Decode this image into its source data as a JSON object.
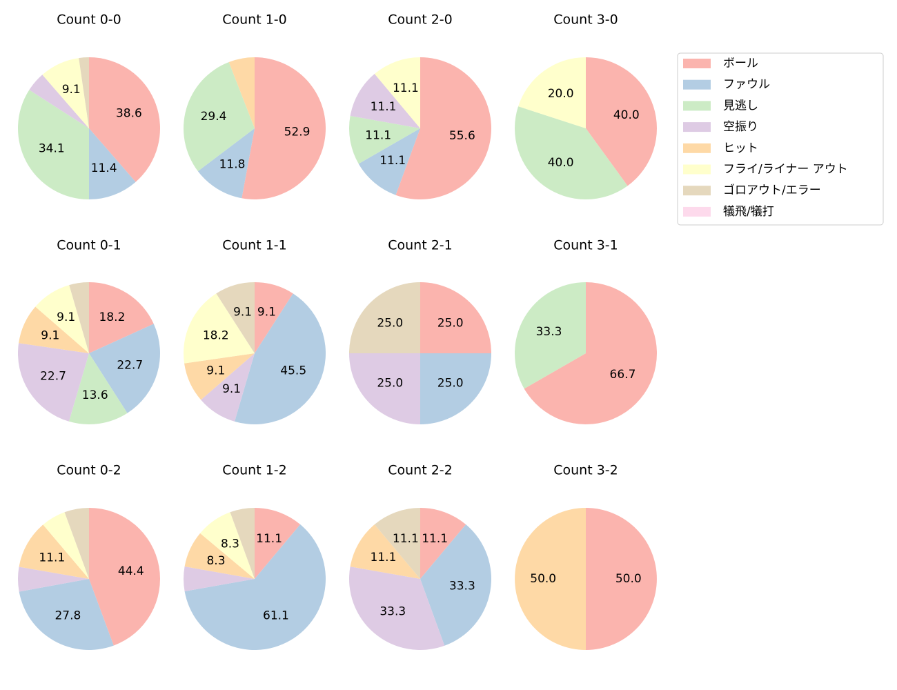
{
  "chart_data": [
    {
      "type": "pie",
      "title": "Count 0-0",
      "categories": [
        "ボール",
        "ファウル",
        "見逃し",
        "空振り",
        "フライ/ライナー アウト",
        "ゴロアウト/エラー"
      ],
      "values": [
        38.6,
        11.4,
        34.1,
        4.5,
        9.1,
        2.3
      ],
      "value_labels": [
        "38.6",
        "11.4",
        "34.1",
        null,
        "9.1",
        null
      ],
      "colors": [
        "#fbb4ae",
        "#b3cde3",
        "#ccebc5",
        "#decbe4",
        "#ffffcc",
        "#e5d8bd"
      ]
    },
    {
      "type": "pie",
      "title": "Count 1-0",
      "categories": [
        "ボール",
        "ファウル",
        "見逃し",
        "ヒット"
      ],
      "values": [
        52.9,
        11.8,
        29.4,
        5.9
      ],
      "value_labels": [
        "52.9",
        "11.8",
        "29.4",
        null
      ],
      "colors": [
        "#fbb4ae",
        "#b3cde3",
        "#ccebc5",
        "#fed9a6"
      ]
    },
    {
      "type": "pie",
      "title": "Count 2-0",
      "categories": [
        "ボール",
        "ファウル",
        "見逃し",
        "空振り",
        "フライ/ライナー アウト"
      ],
      "values": [
        55.6,
        11.1,
        11.1,
        11.1,
        11.1
      ],
      "value_labels": [
        "55.6",
        "11.1",
        "11.1",
        "11.1",
        "11.1"
      ],
      "colors": [
        "#fbb4ae",
        "#b3cde3",
        "#ccebc5",
        "#decbe4",
        "#ffffcc"
      ]
    },
    {
      "type": "pie",
      "title": "Count 3-0",
      "categories": [
        "ボール",
        "見逃し",
        "フライ/ライナー アウト"
      ],
      "values": [
        40,
        40,
        20
      ],
      "value_labels": [
        "40.0",
        "40.0",
        "20.0"
      ],
      "colors": [
        "#fbb4ae",
        "#ccebc5",
        "#ffffcc"
      ]
    },
    {
      "type": "pie",
      "title": "Count 0-1",
      "categories": [
        "ボール",
        "ファウル",
        "見逃し",
        "空振り",
        "ヒット",
        "フライ/ライナー アウト",
        "ゴロアウト/エラー"
      ],
      "values": [
        18.2,
        22.7,
        13.6,
        22.7,
        9.1,
        9.1,
        4.5
      ],
      "value_labels": [
        "18.2",
        "22.7",
        "13.6",
        "22.7",
        "9.1",
        "9.1",
        null
      ],
      "colors": [
        "#fbb4ae",
        "#b3cde3",
        "#ccebc5",
        "#decbe4",
        "#fed9a6",
        "#ffffcc",
        "#e5d8bd"
      ]
    },
    {
      "type": "pie",
      "title": "Count 1-1",
      "categories": [
        "ボール",
        "ファウル",
        "空振り",
        "ヒット",
        "フライ/ライナー アウト",
        "ゴロアウト/エラー"
      ],
      "values": [
        9.1,
        45.5,
        9.1,
        9.1,
        18.2,
        9.1
      ],
      "value_labels": [
        "9.1",
        "45.5",
        "9.1",
        "9.1",
        "18.2",
        "9.1"
      ],
      "colors": [
        "#fbb4ae",
        "#b3cde3",
        "#decbe4",
        "#fed9a6",
        "#ffffcc",
        "#e5d8bd"
      ]
    },
    {
      "type": "pie",
      "title": "Count 2-1",
      "categories": [
        "ボール",
        "ファウル",
        "空振り",
        "ゴロアウト/エラー"
      ],
      "values": [
        25,
        25,
        25,
        25
      ],
      "value_labels": [
        "25.0",
        "25.0",
        "25.0",
        "25.0"
      ],
      "colors": [
        "#fbb4ae",
        "#b3cde3",
        "#decbe4",
        "#e5d8bd"
      ]
    },
    {
      "type": "pie",
      "title": "Count 3-1",
      "categories": [
        "ボール",
        "見逃し"
      ],
      "values": [
        66.7,
        33.3
      ],
      "value_labels": [
        "66.7",
        "33.3"
      ],
      "colors": [
        "#fbb4ae",
        "#ccebc5"
      ]
    },
    {
      "type": "pie",
      "title": "Count 0-2",
      "categories": [
        "ボール",
        "ファウル",
        "空振り",
        "ヒット",
        "フライ/ライナー アウト",
        "ゴロアウト/エラー"
      ],
      "values": [
        44.4,
        27.8,
        5.6,
        11.1,
        5.6,
        5.6
      ],
      "value_labels": [
        "44.4",
        "27.8",
        null,
        "11.1",
        null,
        null
      ],
      "colors": [
        "#fbb4ae",
        "#b3cde3",
        "#decbe4",
        "#fed9a6",
        "#ffffcc",
        "#e5d8bd"
      ]
    },
    {
      "type": "pie",
      "title": "Count 1-2",
      "categories": [
        "ボール",
        "ファウル",
        "空振り",
        "ヒット",
        "フライ/ライナー アウト",
        "ゴロアウト/エラー"
      ],
      "values": [
        11.1,
        61.1,
        5.6,
        8.3,
        8.3,
        5.6
      ],
      "value_labels": [
        "11.1",
        "61.1",
        null,
        "8.3",
        "8.3",
        null
      ],
      "colors": [
        "#fbb4ae",
        "#b3cde3",
        "#decbe4",
        "#fed9a6",
        "#ffffcc",
        "#e5d8bd"
      ]
    },
    {
      "type": "pie",
      "title": "Count 2-2",
      "categories": [
        "ボール",
        "ファウル",
        "空振り",
        "ヒット",
        "ゴロアウト/エラー"
      ],
      "values": [
        11.1,
        33.3,
        33.3,
        11.1,
        11.1
      ],
      "value_labels": [
        "11.1",
        "33.3",
        "33.3",
        "11.1",
        "11.1"
      ],
      "colors": [
        "#fbb4ae",
        "#b3cde3",
        "#decbe4",
        "#fed9a6",
        "#e5d8bd"
      ]
    },
    {
      "type": "pie",
      "title": "Count 3-2",
      "categories": [
        "ボール",
        "ヒット"
      ],
      "values": [
        50,
        50
      ],
      "value_labels": [
        "50.0",
        "50.0"
      ],
      "colors": [
        "#fbb4ae",
        "#fed9a6"
      ]
    }
  ],
  "legend": {
    "labels": [
      "ボール",
      "ファウル",
      "見逃し",
      "空振り",
      "ヒット",
      "フライ/ライナー アウト",
      "ゴロアウト/エラー",
      "犠飛/犠打"
    ],
    "colors": [
      "#fbb4ae",
      "#b3cde3",
      "#ccebc5",
      "#decbe4",
      "#fed9a6",
      "#ffffcc",
      "#e5d8bd",
      "#fddaec"
    ],
    "position": "upper right"
  }
}
